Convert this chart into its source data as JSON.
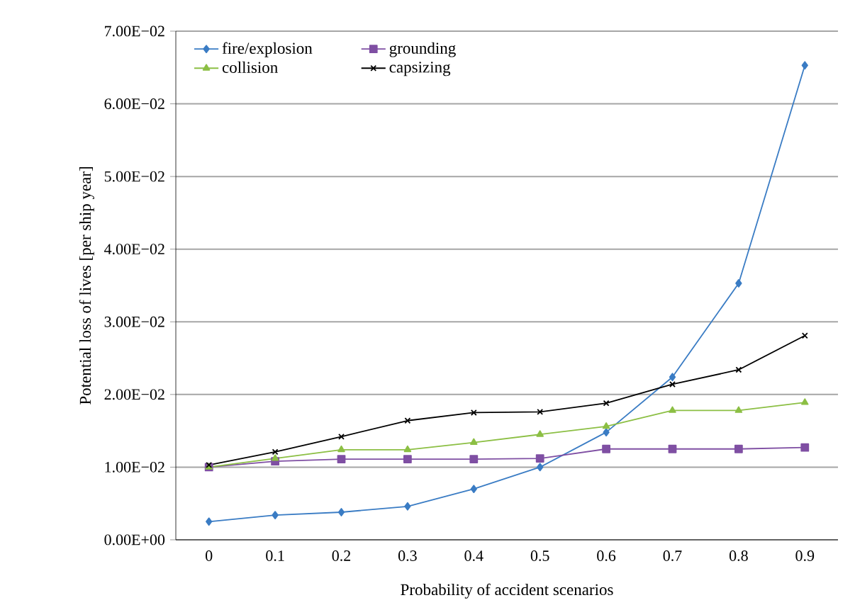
{
  "chart_data": {
    "type": "line",
    "xlabel": "Probability of accident scenarios",
    "ylabel": "Potential loss of lives [per ship year]",
    "categories": [
      "0",
      "0.1",
      "0.2",
      "0.3",
      "0.4",
      "0.5",
      "0.6",
      "0.7",
      "0.8",
      "0.9"
    ],
    "series": [
      {
        "name": "fire/explosion",
        "color": "#3a7cc4",
        "marker": "diamond",
        "values": [
          0.0025,
          0.0034,
          0.0038,
          0.0046,
          0.007,
          0.01,
          0.0148,
          0.0224,
          0.0353,
          0.0653
        ]
      },
      {
        "name": "grounding",
        "color": "#7f4fa3",
        "marker": "square",
        "values": [
          0.01,
          0.0108,
          0.0111,
          0.0111,
          0.0111,
          0.0112,
          0.0125,
          0.0125,
          0.0125,
          0.0127
        ]
      },
      {
        "name": "collision",
        "color": "#8cbf44",
        "marker": "triangle",
        "values": [
          0.01,
          0.0112,
          0.0124,
          0.0124,
          0.0134,
          0.0145,
          0.0156,
          0.0178,
          0.0178,
          0.0189
        ]
      },
      {
        "name": "capsizing",
        "color": "#000000",
        "marker": "cross",
        "values": [
          0.0103,
          0.0121,
          0.0142,
          0.0164,
          0.0175,
          0.0176,
          0.0188,
          0.0214,
          0.0234,
          0.0281
        ]
      }
    ],
    "ylim": [
      0,
      0.07
    ],
    "yticks": [
      {
        "value": 0,
        "label": "0.00E+00"
      },
      {
        "value": 0.01,
        "label": "1.00E−02"
      },
      {
        "value": 0.02,
        "label": "2.00E−02"
      },
      {
        "value": 0.03,
        "label": "3.00E−02"
      },
      {
        "value": 0.04,
        "label": "4.00E−02"
      },
      {
        "value": 0.05,
        "label": "5.00E−02"
      },
      {
        "value": 0.06,
        "label": "6.00E−02"
      },
      {
        "value": 0.07,
        "label": "7.00E−02"
      }
    ],
    "grid": "y",
    "legend": "top left",
    "line_style": "solid"
  }
}
